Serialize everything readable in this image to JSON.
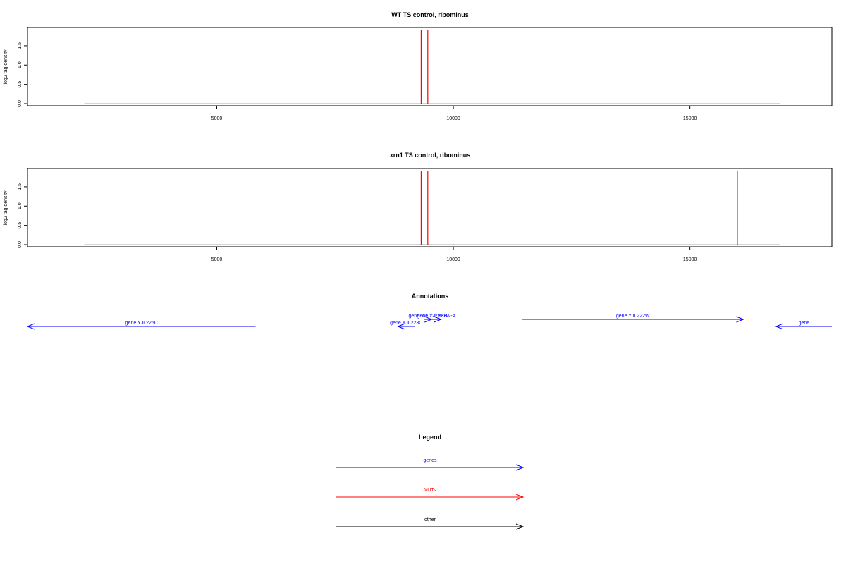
{
  "colors": {
    "xut": "#ff0000",
    "gene": "#0000ff",
    "other": "#000000",
    "baseline": "#aaaaaa",
    "frame": "#000000"
  },
  "chart_data": [
    {
      "type": "line",
      "title": "WT TS control, ribominus",
      "xlabel": "",
      "ylabel": "log2 tag density",
      "xlim": [
        1000,
        18000
      ],
      "ylim": [
        0,
        1.9
      ],
      "grid": false,
      "x_ticks": [
        5000,
        10000,
        15000
      ],
      "x_tick_labels": [
        "5000",
        "10000",
        "15000"
      ],
      "y_ticks": [
        0,
        0.5,
        1.0,
        1.5
      ],
      "y_tick_labels": [
        "0.0",
        "0.5",
        "1.0",
        "1.5"
      ],
      "baseline": {
        "x_start": 2200,
        "x_end": 16900,
        "y": 0
      },
      "series": [
        {
          "kind": "XUTs",
          "color": "#ff0000",
          "points": [
            {
              "x": 9320,
              "y": 1.9
            },
            {
              "x": 9460,
              "y": 1.9
            }
          ]
        }
      ]
    },
    {
      "type": "line",
      "title": "xrn1 TS control, ribominus",
      "xlabel": "",
      "ylabel": "log2 tag density",
      "xlim": [
        1000,
        18000
      ],
      "ylim": [
        0,
        1.9
      ],
      "grid": false,
      "x_ticks": [
        5000,
        10000,
        15000
      ],
      "x_tick_labels": [
        "5000",
        "10000",
        "15000"
      ],
      "y_ticks": [
        0,
        0.5,
        1.0,
        1.5
      ],
      "y_tick_labels": [
        "0.0",
        "0.5",
        "1.0",
        "1.5"
      ],
      "baseline": {
        "x_start": 2200,
        "x_end": 16900,
        "y": 0
      },
      "series": [
        {
          "kind": "XUTs",
          "color": "#ff0000",
          "points": [
            {
              "x": 9320,
              "y": 1.9
            },
            {
              "x": 9460,
              "y": 1.9
            }
          ]
        },
        {
          "kind": "other",
          "color": "#000000",
          "points": [
            {
              "x": 16000,
              "y": 1.9
            }
          ]
        }
      ]
    },
    {
      "type": "annotation-track",
      "title": "Annotations",
      "xlim": [
        1000,
        18000
      ],
      "features": [
        {
          "label": "gene YJL225C",
          "strand": "-",
          "start": 1000,
          "end": 5820,
          "row": 1,
          "color": "#0000ff"
        },
        {
          "label": "gene YJL223C",
          "strand": "-",
          "start": 8830,
          "end": 9180,
          "row": 1,
          "color": "#0000ff"
        },
        {
          "label": "gene YJL222W-B",
          "strand": "+",
          "start": 9380,
          "end": 9540,
          "row": 0,
          "color": "#0000ff"
        },
        {
          "label": "gene YJL222W-A",
          "strand": "+",
          "start": 9540,
          "end": 9740,
          "row": 0,
          "color": "#0000ff"
        },
        {
          "label": "gene YJL222W",
          "strand": "+",
          "start": 11460,
          "end": 16130,
          "row": 0,
          "color": "#0000ff"
        },
        {
          "label": "gene",
          "strand": "-",
          "start": 16820,
          "end": 18000,
          "row": 1,
          "color": "#0000ff"
        }
      ]
    }
  ],
  "legend": {
    "title": "Legend",
    "items": [
      {
        "label": "genes",
        "color": "#0000ff"
      },
      {
        "label": "XUTs",
        "color": "#ff0000"
      },
      {
        "label": "other",
        "color": "#000000"
      }
    ]
  }
}
